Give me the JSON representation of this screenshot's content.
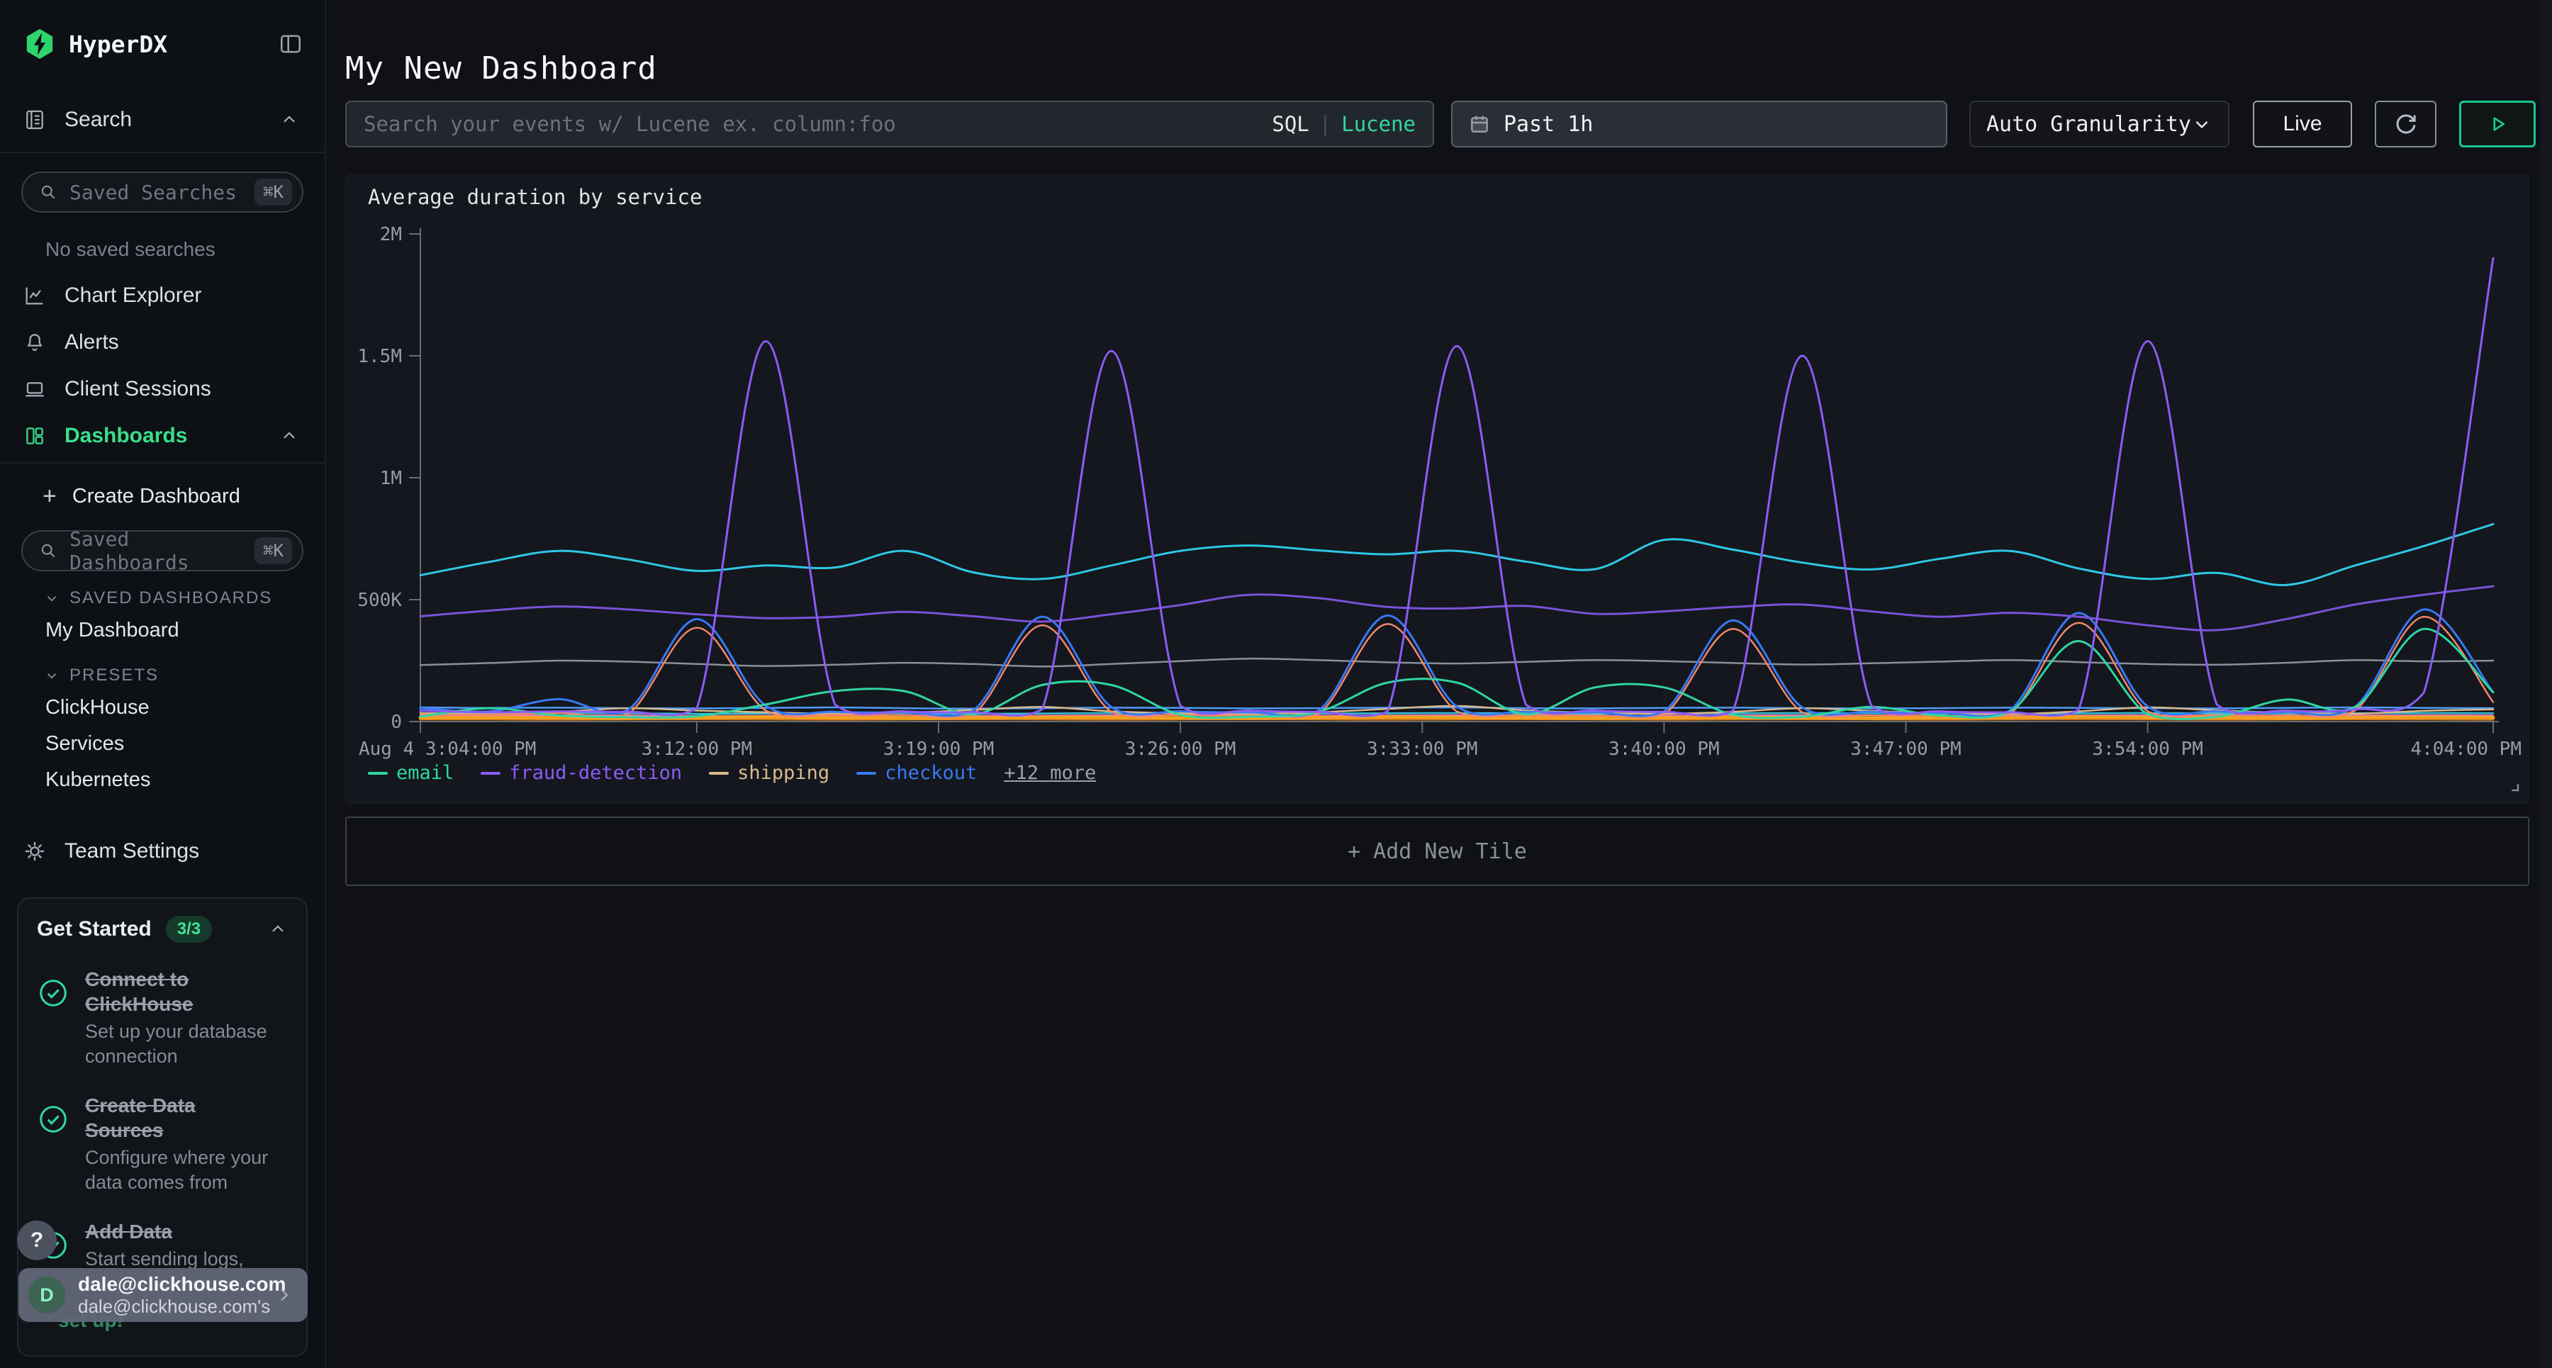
{
  "sidebar": {
    "brand": "HyperDX",
    "search_label": "Search",
    "saved_searches": {
      "placeholder": "Saved Searches",
      "shortcut": "⌘K"
    },
    "no_saved_searches": "No saved searches",
    "nav": [
      {
        "label": "Chart Explorer"
      },
      {
        "label": "Alerts"
      },
      {
        "label": "Client Sessions"
      },
      {
        "label": "Dashboards"
      }
    ],
    "create_dashboard": {
      "plus": "+",
      "label": "Create Dashboard"
    },
    "saved_dashboards": {
      "placeholder": "Saved Dashboards",
      "shortcut": "⌘K"
    },
    "saved_dashboards_section": "SAVED DASHBOARDS",
    "saved_dashboard_items": [
      "My Dashboard"
    ],
    "presets_section": "PRESETS",
    "preset_items": [
      "ClickHouse",
      "Services",
      "Kubernetes"
    ],
    "team_settings": "Team Settings",
    "get_started": {
      "title": "Get Started",
      "badge": "3/3",
      "items": [
        {
          "title": "Connect to ClickHouse",
          "desc": "Set up your database connection"
        },
        {
          "title": "Create Data Sources",
          "desc": "Configure where your data comes from"
        },
        {
          "title": "Add Data",
          "desc": "Start sending logs, metrics, or traces"
        }
      ],
      "partial_item": "set up!"
    },
    "help": "?",
    "user": {
      "avatar": "D",
      "name": "dale@clickhouse.com",
      "org": "dale@clickhouse.com's"
    }
  },
  "header": {
    "title": "My New Dashboard",
    "search": {
      "placeholder": "Search your events w/ Lucene ex. column:foo",
      "sql": "SQL",
      "sep": "|",
      "lucene": "Lucene"
    },
    "time_range": "Past 1h",
    "granularity": "Auto Granularity",
    "live": "Live"
  },
  "add_tile_label": "+ Add New Tile",
  "chart_data": {
    "type": "line",
    "title": "Average duration by service",
    "xlabel": "",
    "ylabel": "",
    "ylim": [
      0,
      2000000
    ],
    "x_minutes_range": [
      0,
      60
    ],
    "grid": "faint-dotted",
    "legend_position": "bottom-left",
    "y_ticks": [
      {
        "v": 0,
        "label": "0"
      },
      {
        "v": 500000,
        "label": "500K"
      },
      {
        "v": 1000000,
        "label": "1M"
      },
      {
        "v": 1500000,
        "label": "1.5M"
      },
      {
        "v": 2000000,
        "label": "2M"
      }
    ],
    "x_ticks": [
      {
        "t": 0,
        "label": "Aug 4 3:04:00 PM"
      },
      {
        "t": 8,
        "label": "3:12:00 PM"
      },
      {
        "t": 15,
        "label": "3:19:00 PM"
      },
      {
        "t": 22,
        "label": "3:26:00 PM"
      },
      {
        "t": 29,
        "label": "3:33:00 PM"
      },
      {
        "t": 36,
        "label": "3:40:00 PM"
      },
      {
        "t": 43,
        "label": "3:47:00 PM"
      },
      {
        "t": 50,
        "label": "3:54:00 PM"
      },
      {
        "t": 60,
        "label": "4:04:00 PM"
      }
    ],
    "legend": [
      {
        "label": "email",
        "color": "#2fd6a3"
      },
      {
        "label": "fraud-detection",
        "color": "#8b5cf6"
      },
      {
        "label": "shipping",
        "color": "#d8b98c"
      },
      {
        "label": "checkout",
        "color": "#3779f5"
      }
    ],
    "legend_more": "+12 more",
    "sample_step_minutes": 2,
    "value_unit": "thousands",
    "series": [
      {
        "name": "",
        "color": "#8a909b",
        "width": 2.5,
        "values_k": [
          232,
          240,
          250,
          246,
          236,
          228,
          233,
          241,
          236,
          226,
          236,
          248,
          258,
          252,
          243,
          238,
          245,
          252,
          248,
          240,
          234,
          239,
          246,
          252,
          244,
          236,
          233,
          241,
          252,
          247,
          250
        ]
      },
      {
        "name": "",
        "color": "#4f9cf7",
        "width": 2.5,
        "values_k": [
          58,
          56,
          57,
          55,
          54,
          56,
          58,
          55,
          53,
          55,
          57,
          56,
          54,
          55,
          57,
          58,
          55,
          54,
          56,
          57,
          55,
          54,
          55,
          57,
          56,
          55,
          54,
          56,
          58,
          56,
          55
        ]
      },
      {
        "name": "",
        "color": "#35c3dc",
        "width": 2.5,
        "values_k": [
          34,
          33,
          35,
          34,
          32,
          33,
          35,
          34,
          32,
          33,
          35,
          36,
          34,
          33,
          34,
          35,
          34,
          32,
          33,
          34,
          35,
          34,
          33,
          32,
          34,
          35,
          34,
          33,
          34,
          35,
          34
        ]
      },
      {
        "name": "",
        "color": "#e87fb1",
        "width": 2.5,
        "values_k": [
          25,
          24,
          26,
          25,
          23,
          24,
          26,
          25,
          23,
          24,
          26,
          27,
          25,
          24,
          25,
          26,
          25,
          23,
          24,
          25,
          26,
          25,
          24,
          23,
          25,
          26,
          25,
          24,
          25,
          26,
          25
        ]
      },
      {
        "name": "",
        "color": "#c46a10",
        "width": 3,
        "values_k": [
          9,
          9,
          8,
          9,
          10,
          9,
          8,
          9,
          10,
          9,
          8,
          9,
          10,
          9,
          8,
          9,
          10,
          9,
          8,
          9,
          10,
          9,
          8,
          9,
          10,
          9,
          8,
          9,
          10,
          9,
          8
        ]
      },
      {
        "name": "shipping",
        "color": "#d8b98c",
        "width": 2.5,
        "values_k": [
          35,
          30,
          40,
          55,
          45,
          38,
          32,
          36,
          48,
          60,
          42,
          34,
          30,
          38,
          52,
          64,
          46,
          36,
          32,
          40,
          55,
          44,
          34,
          30,
          42,
          58,
          46,
          36,
          32,
          44,
          50
        ]
      },
      {
        "name": "",
        "color": "#f59f1e",
        "width": 5,
        "values_k": [
          15,
          16,
          15,
          14,
          16,
          18,
          15,
          14,
          15,
          17,
          16,
          15,
          14,
          16,
          18,
          16,
          15,
          14,
          15,
          17,
          15,
          14,
          15,
          16,
          18,
          16,
          15,
          14,
          16,
          17,
          16
        ]
      },
      {
        "name": "",
        "color": "#f0876a",
        "width": 2.5,
        "values_k": [
          30,
          28,
          35,
          30,
          385,
          45,
          28,
          26,
          30,
          395,
          40,
          28,
          26,
          32,
          400,
          42,
          28,
          26,
          30,
          380,
          38,
          26,
          25,
          30,
          405,
          42,
          28,
          26,
          45,
          430,
          80
        ]
      },
      {
        "name": "checkout",
        "color": "#3779f5",
        "width": 3,
        "values_k": [
          55,
          42,
          92,
          48,
          420,
          65,
          40,
          38,
          45,
          430,
          60,
          42,
          38,
          45,
          435,
          62,
          40,
          38,
          42,
          415,
          58,
          40,
          36,
          44,
          445,
          62,
          42,
          38,
          60,
          460,
          120
        ]
      },
      {
        "name": "email",
        "color": "#2fd6a3",
        "width": 3,
        "values_k": [
          20,
          55,
          25,
          18,
          22,
          70,
          125,
          125,
          30,
          150,
          150,
          28,
          20,
          40,
          160,
          160,
          30,
          140,
          140,
          28,
          20,
          60,
          25,
          40,
          330,
          30,
          20,
          90,
          60,
          380,
          120
        ]
      },
      {
        "name": "",
        "color": "#7a52d9",
        "width": 3,
        "values_k": [
          432,
          455,
          472,
          460,
          440,
          424,
          430,
          450,
          432,
          410,
          440,
          478,
          520,
          506,
          470,
          464,
          474,
          442,
          452,
          470,
          480,
          452,
          430,
          446,
          430,
          395,
          375,
          420,
          480,
          520,
          555
        ]
      },
      {
        "name": "",
        "color": "#2ec8e6",
        "width": 3,
        "values_k": [
          600,
          655,
          700,
          665,
          618,
          640,
          632,
          700,
          612,
          585,
          640,
          700,
          722,
          702,
          686,
          700,
          656,
          625,
          745,
          705,
          652,
          624,
          668,
          700,
          628,
          585,
          610,
          560,
          640,
          720,
          810
        ]
      },
      {
        "name": "fraud-detection",
        "color": "#8b5cf6",
        "width": 3,
        "values_k": [
          45,
          38,
          42,
          40,
          55,
          1560,
          70,
          42,
          38,
          50,
          1520,
          65,
          45,
          40,
          42,
          1540,
          70,
          45,
          40,
          45,
          1500,
          65,
          42,
          38,
          48,
          1560,
          70,
          45,
          50,
          120,
          1900
        ]
      }
    ]
  }
}
